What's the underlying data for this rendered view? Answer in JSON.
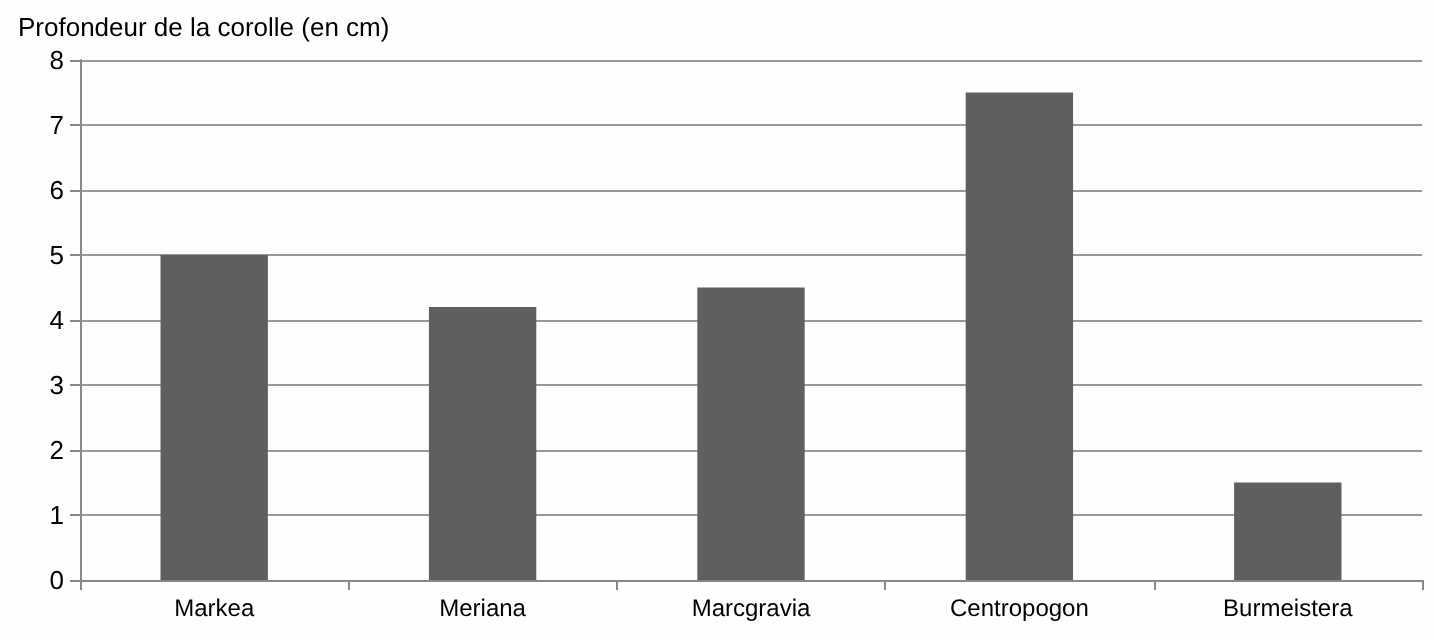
{
  "chart_data": {
    "type": "bar",
    "ylabel": "Profondeur de la corolle (en cm)",
    "categories": [
      "Markea",
      "Meriana",
      "Marcgravia",
      "Centropogon",
      "Burmeistera"
    ],
    "values": [
      5,
      4.2,
      4.5,
      7.5,
      1.5
    ],
    "color": "#5f5f5f",
    "ylim": [
      0,
      8
    ],
    "yticks": [
      0,
      1,
      2,
      3,
      4,
      5,
      6,
      7,
      8
    ],
    "grid": "y"
  }
}
